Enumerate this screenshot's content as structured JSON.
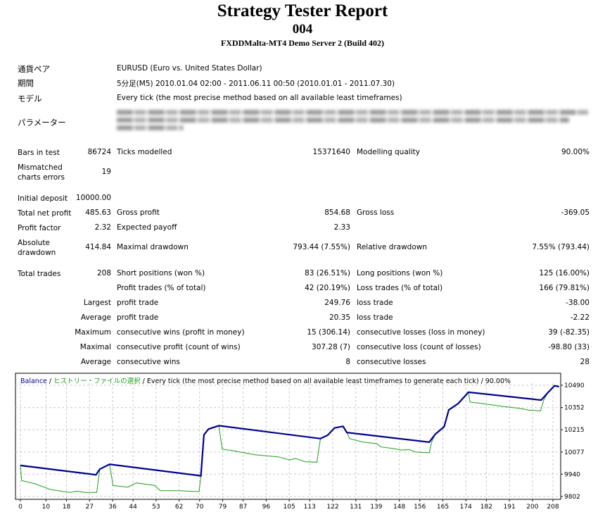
{
  "header": {
    "title": "Strategy Tester Report",
    "name": "004",
    "server": "FXDDMalta-MT4 Demo Server 2 (Build 402)"
  },
  "info": [
    {
      "label": "通貨ペア",
      "value": "EURUSD (Euro vs. United States Dollar)"
    },
    {
      "label": "期間",
      "value": "5分足(M5) 2010.01.04 02:00 - 2011.06.11 00:50 (2010.01.01 - 2011.07.30)"
    },
    {
      "label": "モデル",
      "value": "Every tick (the most precise method based on all available least timeframes)"
    },
    {
      "label": "パラメーター",
      "value": ""
    }
  ],
  "stats": [
    [
      "Bars in test",
      "86724",
      "Ticks modelled",
      "15371640",
      "Modelling quality",
      "90.00%"
    ],
    [
      "Mismatched charts errors",
      "19",
      "",
      "",
      "",
      ""
    ],
    [
      "Initial deposit",
      "10000.00",
      "",
      "",
      "",
      ""
    ],
    [
      "Total net profit",
      "485.63",
      "Gross profit",
      "854.68",
      "Gross loss",
      "-369.05"
    ],
    [
      "Profit factor",
      "2.32",
      "Expected payoff",
      "2.33",
      "",
      ""
    ],
    [
      "Absolute drawdown",
      "414.84",
      "Maximal drawdown",
      "793.44 (7.55%)",
      "Relative drawdown",
      "7.55% (793.44)"
    ],
    [
      "Total trades",
      "208",
      "Short positions (won %)",
      "83 (26.51%)",
      "Long positions (won %)",
      "125 (16.00%)"
    ],
    [
      "",
      "",
      "Profit trades (% of total)",
      "42 (20.19%)",
      "Loss trades (% of total)",
      "166 (79.81%)"
    ],
    [
      "",
      "Largest",
      "profit trade",
      "249.76",
      "loss trade",
      "-38.00"
    ],
    [
      "",
      "Average",
      "profit trade",
      "20.35",
      "loss trade",
      "-2.22"
    ],
    [
      "",
      "Maximum",
      "consecutive wins (profit in money)",
      "15 (306.14)",
      "consecutive losses (loss in money)",
      "39 (-82.35)"
    ],
    [
      "",
      "Maximal",
      "consecutive profit (count of wins)",
      "307.28 (7)",
      "consecutive loss (count of losses)",
      "-98.80 (33)"
    ],
    [
      "",
      "Average",
      "consecutive wins",
      "8",
      "consecutive losses",
      "28"
    ]
  ],
  "chart_data": {
    "type": "line",
    "legend": {
      "balance": "Balance",
      "sep1": " / ",
      "equity": "ヒストリー・ファイルの選択",
      "rest": " / Every tick (the most precise method based on all available least timeframes to generate each tick) / 90.00%"
    },
    "colors": {
      "balance": "#00008b",
      "equity": "#1e9e1e",
      "grid": "#c8c8c8"
    },
    "xlim": [
      0,
      210.5
    ],
    "ylim": [
      9802,
      10510
    ],
    "xticks": [
      "0",
      "10",
      "18",
      "27",
      "36",
      "44",
      "53",
      "62",
      "70",
      "79",
      "87",
      "96",
      "105",
      "113",
      "122",
      "131",
      "139",
      "148",
      "156",
      "165",
      "174",
      "182",
      "191",
      "200",
      "208"
    ],
    "yticks": [
      "10490",
      "10352",
      "10215",
      "10077",
      "9940",
      "9802"
    ],
    "series": [
      {
        "name": "Balance",
        "points": [
          [
            0,
            9994
          ],
          [
            29.5,
            9936
          ],
          [
            31,
            9971
          ],
          [
            34.8,
            10001
          ],
          [
            70.5,
            9930
          ],
          [
            71.7,
            10184
          ],
          [
            73.5,
            10219
          ],
          [
            77.5,
            10240
          ],
          [
            117.2,
            10160
          ],
          [
            120,
            10181
          ],
          [
            122.7,
            10226
          ],
          [
            126,
            10236
          ],
          [
            127.5,
            10198
          ],
          [
            159.7,
            10138
          ],
          [
            162,
            10187
          ],
          [
            165.5,
            10233
          ],
          [
            167.3,
            10337
          ],
          [
            171,
            10377
          ],
          [
            175,
            10447
          ],
          [
            203.4,
            10398
          ],
          [
            206,
            10444
          ],
          [
            208.6,
            10487
          ],
          [
            210.4,
            10481
          ]
        ]
      },
      {
        "name": "Equity",
        "points": [
          [
            0,
            9994
          ],
          [
            0.5,
            9901
          ],
          [
            5.7,
            9881
          ],
          [
            11.8,
            9845
          ],
          [
            19.3,
            9827
          ],
          [
            22.3,
            9835
          ],
          [
            25.3,
            9827
          ],
          [
            29.8,
            9827
          ],
          [
            31,
            9971
          ],
          [
            34.8,
            10001
          ],
          [
            36.2,
            9870
          ],
          [
            42,
            9860
          ],
          [
            45.2,
            9886
          ],
          [
            52.4,
            9871
          ],
          [
            54.7,
            9838
          ],
          [
            61.5,
            9838
          ],
          [
            69.8,
            9832
          ],
          [
            70.5,
            9930
          ],
          [
            71.7,
            10184
          ],
          [
            73.5,
            10219
          ],
          [
            77.5,
            10240
          ],
          [
            78.8,
            10095
          ],
          [
            82.6,
            10086
          ],
          [
            91.6,
            10060
          ],
          [
            100.7,
            10047
          ],
          [
            105.2,
            10028
          ],
          [
            107.5,
            10037
          ],
          [
            111.2,
            10017
          ],
          [
            115.8,
            10014
          ],
          [
            117.2,
            10160
          ],
          [
            120,
            10181
          ],
          [
            122.7,
            10226
          ],
          [
            126,
            10236
          ],
          [
            127.5,
            10198
          ],
          [
            128.6,
            10160
          ],
          [
            133.8,
            10138
          ],
          [
            139.1,
            10129
          ],
          [
            140.9,
            10108
          ],
          [
            145.9,
            10098
          ],
          [
            148.9,
            10089
          ],
          [
            151.9,
            10092
          ],
          [
            154.2,
            10077
          ],
          [
            159.7,
            10072
          ],
          [
            160.6,
            10138
          ],
          [
            162,
            10187
          ],
          [
            165.5,
            10233
          ],
          [
            167.3,
            10337
          ],
          [
            171,
            10377
          ],
          [
            175,
            10447
          ],
          [
            175.6,
            10386
          ],
          [
            180.5,
            10377
          ],
          [
            188,
            10360
          ],
          [
            195.6,
            10346
          ],
          [
            198.6,
            10336
          ],
          [
            203.1,
            10331
          ],
          [
            204.4,
            10398
          ],
          [
            206,
            10444
          ],
          [
            208.6,
            10487
          ],
          [
            210.4,
            10481
          ]
        ]
      }
    ]
  }
}
